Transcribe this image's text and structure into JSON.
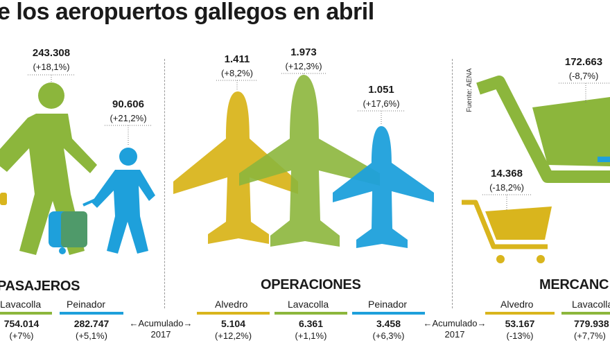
{
  "title": "e los aeropuertos gallegos en abril",
  "source": "Fuente: AENA",
  "colors": {
    "alvedro": "#d9b51d",
    "lavacolla": "#8cb63c",
    "peinador": "#1ea0db"
  },
  "accumulated_label": "←Acumulado→",
  "accumulated_year": "2017",
  "chart_data": [
    {
      "type": "table",
      "section": "PASAJEROS",
      "abril": [
        {
          "name": "Lavacolla",
          "value": "243.308",
          "change": "(+18,1%)"
        },
        {
          "name": "Peinador",
          "value": "90.606",
          "change": "(+21,2%)"
        }
      ],
      "acumulado": [
        {
          "name": "Lavacolla",
          "value": "754.014",
          "change": "(+7%)"
        },
        {
          "name": "Peinador",
          "value": "282.747",
          "change": "(+5,1%)"
        }
      ]
    },
    {
      "type": "table",
      "section": "OPERACIONES",
      "abril": [
        {
          "name": "Alvedro",
          "value": "1.411",
          "change": "(+8,2%)"
        },
        {
          "name": "Lavacolla",
          "value": "1.973",
          "change": "(+12,3%)"
        },
        {
          "name": "Peinador",
          "value": "1.051",
          "change": "(+17,6%)"
        }
      ],
      "acumulado": [
        {
          "name": "Alvedro",
          "value": "5.104",
          "change": "(+12,2%)"
        },
        {
          "name": "Lavacolla",
          "value": "6.361",
          "change": "(+1,1%)"
        },
        {
          "name": "Peinador",
          "value": "3.458",
          "change": "(+6,3%)"
        }
      ]
    },
    {
      "type": "table",
      "section": "MERCANC",
      "abril": [
        {
          "name": "Alvedro",
          "value": "14.368",
          "change": "(-18,2%)"
        },
        {
          "name": "Lavacolla",
          "value": "172.663",
          "change": "(-8,7%)"
        }
      ],
      "acumulado": [
        {
          "name": "Alvedro",
          "value": "53.167",
          "change": "(-13%)"
        },
        {
          "name": "Lavacolla",
          "value": "779.938",
          "change": "(+7,7%)"
        }
      ]
    }
  ]
}
